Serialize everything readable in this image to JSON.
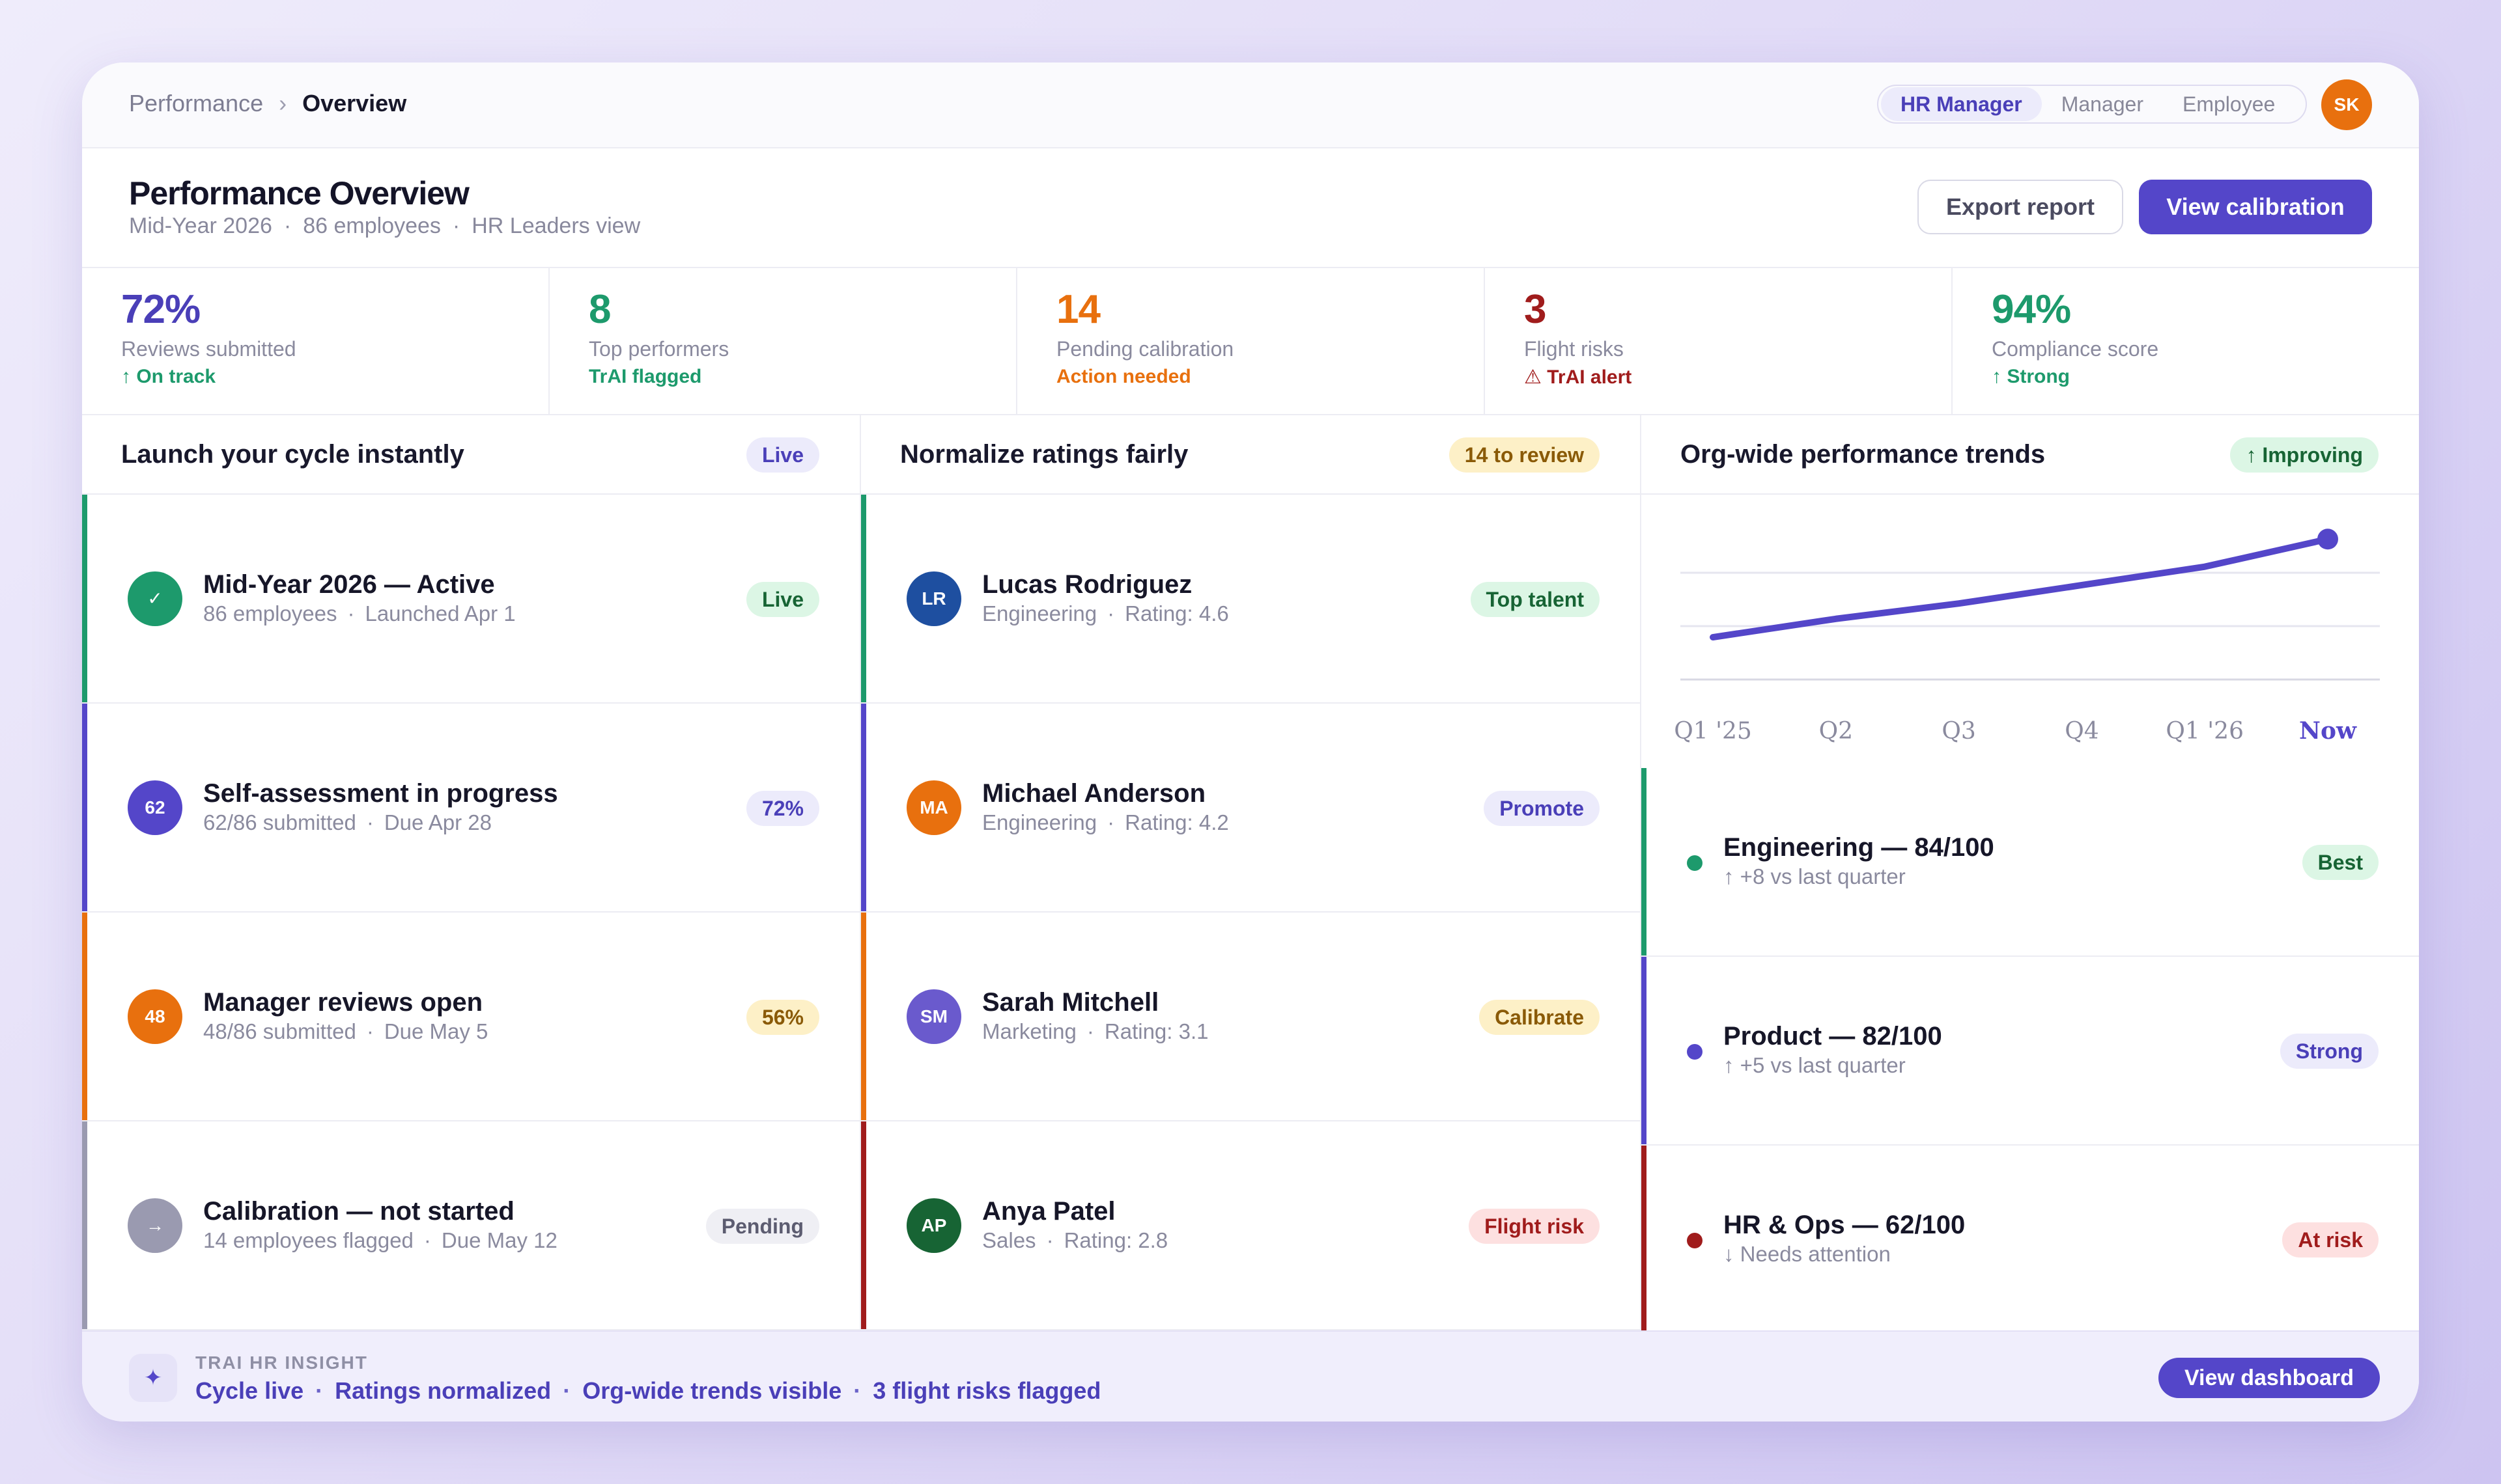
{
  "breadcrumb": {
    "parent": "Performance",
    "separator": "›",
    "current": "Overview"
  },
  "roles": {
    "items": [
      "HR Manager",
      "Manager",
      "Employee"
    ],
    "active": "HR Manager"
  },
  "user": {
    "initials": "SK",
    "color": "#e8700e"
  },
  "header": {
    "title": "Performance Overview",
    "meta": [
      "Mid-Year 2026",
      "86 employees",
      "HR Leaders view"
    ],
    "meta_sep": "·",
    "export_label": "Export report",
    "calibration_label": "View calibration"
  },
  "stats": [
    {
      "value": "72%",
      "label": "Reviews submitted",
      "note": "↑ On track",
      "value_color": "#4a3fb8",
      "note_color": "#1d9a6c"
    },
    {
      "value": "8",
      "label": "Top performers",
      "note": "TrAI flagged",
      "value_color": "#1d9a6c",
      "note_color": "#1d9a6c"
    },
    {
      "value": "14",
      "label": "Pending calibration",
      "note": "Action needed",
      "value_color": "#e8700e",
      "note_color": "#e8700e"
    },
    {
      "value": "3",
      "label": "Flight risks",
      "note": "⚠ TrAI alert",
      "value_color": "#a01c1c",
      "note_color": "#a01c1c"
    },
    {
      "value": "94%",
      "label": "Compliance score",
      "note": "↑ Strong",
      "value_color": "#1d9a6c",
      "note_color": "#1d9a6c"
    }
  ],
  "cycle": {
    "title": "Launch your cycle instantly",
    "status": "Live",
    "items": [
      {
        "icon": "✓",
        "title": "Mid-Year 2026 — Active",
        "meta": [
          "86 employees",
          "Launched Apr 1"
        ],
        "badge": "Live",
        "color": "#1d9a6c"
      },
      {
        "icon": "62",
        "title": "Self-assessment in progress",
        "meta": [
          "62/86 submitted",
          "Due Apr 28"
        ],
        "badge": "72%",
        "color": "#5446c9"
      },
      {
        "icon": "48",
        "title": "Manager reviews open",
        "meta": [
          "48/86 submitted",
          "Due May 5"
        ],
        "badge": "56%",
        "color": "#e8700e"
      },
      {
        "icon": "→",
        "title": "Calibration — not started",
        "meta": [
          "14 employees flagged",
          "Due May 12"
        ],
        "badge": "Pending",
        "color": "#9a9ab0"
      }
    ]
  },
  "ratings": {
    "title": "Normalize ratings fairly",
    "status": "14 to review",
    "items": [
      {
        "initials": "LR",
        "name": "Lucas Rodriguez",
        "dept": "Engineering",
        "rating": "Rating: 4.6",
        "badge": "Top talent",
        "color": "#1e4fa0",
        "bar": "#1d9a6c"
      },
      {
        "initials": "MA",
        "name": "Michael Anderson",
        "dept": "Engineering",
        "rating": "Rating: 4.2",
        "badge": "Promote",
        "color": "#e8700e",
        "bar": "#5446c9"
      },
      {
        "initials": "SM",
        "name": "Sarah Mitchell",
        "dept": "Marketing",
        "rating": "Rating: 3.1",
        "badge": "Calibrate",
        "color": "#6a5acd",
        "bar": "#e8700e"
      },
      {
        "initials": "AP",
        "name": "Anya Patel",
        "dept": "Sales",
        "rating": "Rating: 2.8",
        "badge": "Flight risk",
        "color": "#176434",
        "bar": "#a01c1c"
      }
    ]
  },
  "trends": {
    "title": "Org-wide performance trends",
    "status": "↑ Improving",
    "items": [
      {
        "title": "Engineering — 84/100",
        "sub": "↑ +8 vs last quarter",
        "badge": "Best",
        "color": "#1d9a6c"
      },
      {
        "title": "Product — 82/100",
        "sub": "↑ +5 vs last quarter",
        "badge": "Strong",
        "color": "#5446c9"
      },
      {
        "title": "HR & Ops — 62/100",
        "sub": "↓ Needs attention",
        "badge": "At risk",
        "color": "#a01c1c"
      }
    ]
  },
  "chart_data": {
    "type": "line",
    "categories": [
      "Q1 '25",
      "Q2",
      "Q3",
      "Q4",
      "Q1 '26",
      "Now"
    ],
    "values": [
      54,
      60,
      65,
      71,
      77,
      86
    ],
    "ylim": [
      40,
      92
    ],
    "grid": true,
    "series_color": "#5446c9"
  },
  "insight": {
    "label": "TRAI HR INSIGHT",
    "items": [
      "Cycle live",
      "Ratings normalized",
      "Org-wide trends visible",
      "3 flight risks flagged"
    ],
    "sep": "·",
    "button": "View dashboard"
  }
}
